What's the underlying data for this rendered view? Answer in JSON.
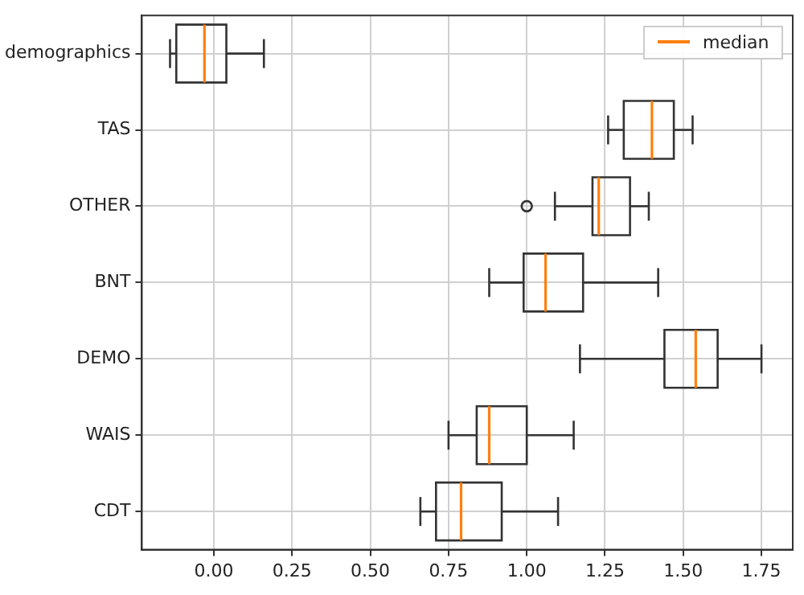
{
  "chart_data": {
    "type": "box",
    "orientation": "horizontal",
    "categories": [
      "demographics",
      "TAS",
      "OTHER",
      "BNT",
      "DEMO",
      "WAIS",
      "CDT"
    ],
    "series": [
      {
        "name": "median",
        "color": "#333333",
        "boxes": [
          {
            "low": -0.14,
            "q1": -0.12,
            "median": -0.03,
            "q3": 0.04,
            "high": 0.16
          },
          {
            "low": 1.26,
            "q1": 1.31,
            "median": 1.4,
            "q3": 1.47,
            "high": 1.53
          },
          {
            "low": 1.09,
            "q1": 1.21,
            "median": 1.23,
            "q3": 1.33,
            "high": 1.39,
            "outliers": [
              1.0
            ]
          },
          {
            "low": 0.88,
            "q1": 0.99,
            "median": 1.06,
            "q3": 1.18,
            "high": 1.42
          },
          {
            "low": 1.17,
            "q1": 1.44,
            "median": 1.54,
            "q3": 1.61,
            "high": 1.75
          },
          {
            "low": 0.75,
            "q1": 0.84,
            "median": 0.88,
            "q3": 1.0,
            "high": 1.15
          },
          {
            "low": 0.66,
            "q1": 0.71,
            "median": 0.79,
            "q3": 0.92,
            "high": 1.1
          }
        ]
      }
    ],
    "xlim": [
      -0.23,
      1.85
    ],
    "xticks": [
      {
        "value": 0,
        "label": "0.00"
      },
      {
        "value": 0.25,
        "label": "0.25"
      },
      {
        "value": 0.5,
        "label": "0.50"
      },
      {
        "value": 0.75,
        "label": "0.75"
      },
      {
        "value": 1,
        "label": "1.00"
      },
      {
        "value": 1.25,
        "label": "1.25"
      },
      {
        "value": 1.5,
        "label": "1.50"
      },
      {
        "value": 1.75,
        "label": "1.75"
      }
    ],
    "grid": true,
    "legend": "top right"
  }
}
